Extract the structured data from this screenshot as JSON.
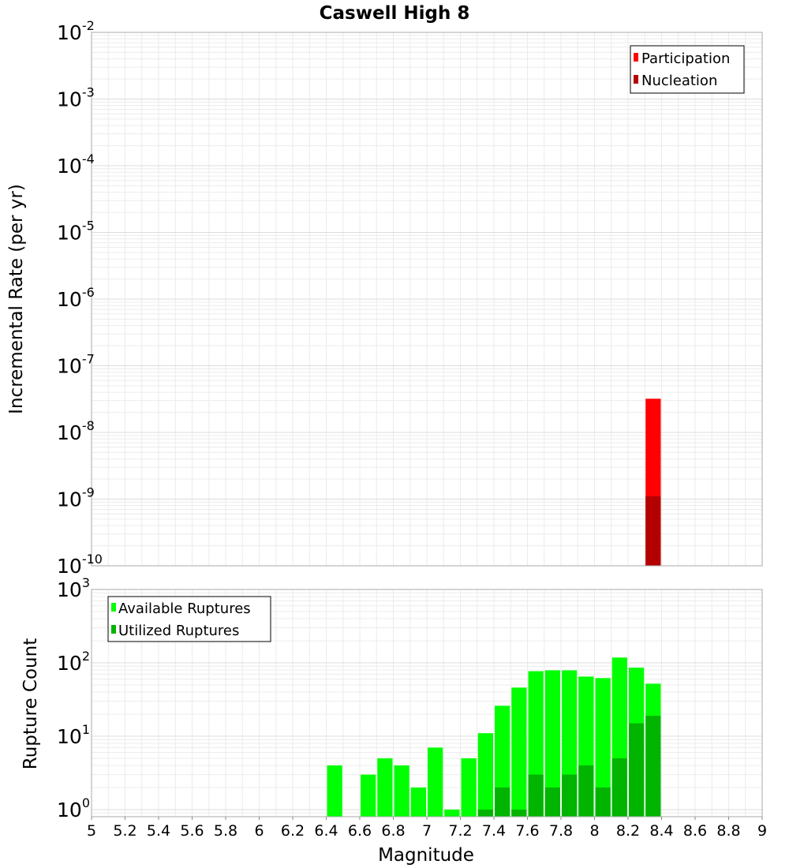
{
  "title": "Caswell High 8",
  "chart_data": [
    {
      "type": "bar",
      "yscale": "log",
      "ylabel": "Incremental Rate (per yr)",
      "ylim": [
        1e-10,
        0.01
      ],
      "ytick_exponents": [
        -10,
        -9,
        -8,
        -7,
        -6,
        -5,
        -4,
        -3,
        -2
      ],
      "ytick_base": "10",
      "legend": {
        "placement": "top-right",
        "entries": [
          "Participation",
          "Nucleation"
        ]
      },
      "bar_width": 0.1,
      "series": [
        {
          "name": "Participation",
          "color": "#ff0000",
          "points": [
            {
              "x": 8.35,
              "y": 3.2e-08
            }
          ]
        },
        {
          "name": "Nucleation",
          "color": "#b40000",
          "points": [
            {
              "x": 8.35,
              "y": 1.1e-09
            }
          ]
        }
      ]
    },
    {
      "type": "bar",
      "yscale": "log",
      "ylabel": "Rupture Count",
      "xlabel": "Magnitude",
      "ylim": [
        0.8,
        1000
      ],
      "ytick_exponents": [
        0,
        1,
        2,
        3
      ],
      "ytick_base": "10",
      "xlim": [
        5,
        9
      ],
      "xticks": [
        "5",
        "5.2",
        "5.4",
        "5.6",
        "5.8",
        "6",
        "6.2",
        "6.4",
        "6.6",
        "6.8",
        "7",
        "7.2",
        "7.4",
        "7.6",
        "7.8",
        "8",
        "8.2",
        "8.4",
        "8.6",
        "8.8",
        "9"
      ],
      "legend": {
        "placement": "top-left",
        "entries": [
          "Available Ruptures",
          "Utilized Ruptures"
        ]
      },
      "bar_width": 0.1,
      "series": [
        {
          "name": "Available Ruptures",
          "color": "#00ff00",
          "points": [
            {
              "x": 6.45,
              "y": 4
            },
            {
              "x": 6.65,
              "y": 3
            },
            {
              "x": 6.75,
              "y": 5
            },
            {
              "x": 6.85,
              "y": 4
            },
            {
              "x": 6.95,
              "y": 2
            },
            {
              "x": 7.05,
              "y": 7
            },
            {
              "x": 7.15,
              "y": 1
            },
            {
              "x": 7.25,
              "y": 5
            },
            {
              "x": 7.35,
              "y": 11
            },
            {
              "x": 7.45,
              "y": 26
            },
            {
              "x": 7.55,
              "y": 46
            },
            {
              "x": 7.65,
              "y": 77
            },
            {
              "x": 7.75,
              "y": 79
            },
            {
              "x": 7.85,
              "y": 79
            },
            {
              "x": 7.95,
              "y": 65
            },
            {
              "x": 8.05,
              "y": 62
            },
            {
              "x": 8.15,
              "y": 118
            },
            {
              "x": 8.25,
              "y": 86
            },
            {
              "x": 8.35,
              "y": 52
            }
          ]
        },
        {
          "name": "Utilized Ruptures",
          "color": "#00b400",
          "points": [
            {
              "x": 7.35,
              "y": 1
            },
            {
              "x": 7.45,
              "y": 2
            },
            {
              "x": 7.55,
              "y": 1
            },
            {
              "x": 7.65,
              "y": 3
            },
            {
              "x": 7.75,
              "y": 2
            },
            {
              "x": 7.85,
              "y": 3
            },
            {
              "x": 7.95,
              "y": 4
            },
            {
              "x": 8.05,
              "y": 2
            },
            {
              "x": 8.15,
              "y": 5
            },
            {
              "x": 8.25,
              "y": 15
            },
            {
              "x": 8.35,
              "y": 19
            }
          ]
        }
      ]
    }
  ]
}
